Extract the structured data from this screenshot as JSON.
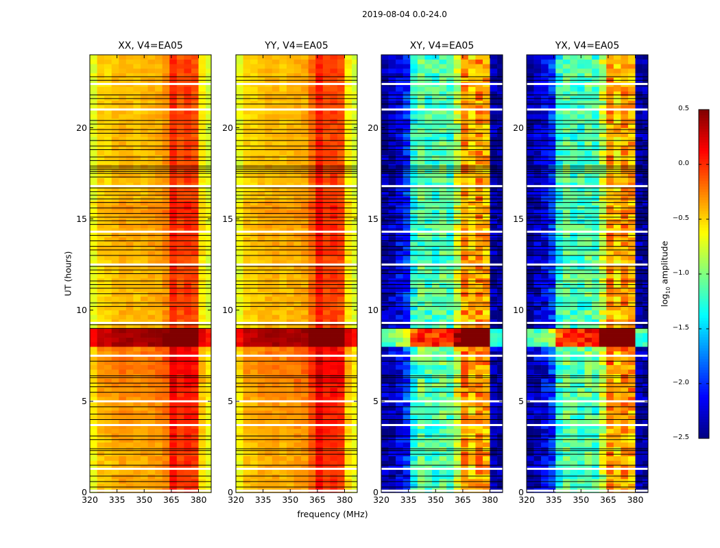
{
  "suptitle": "2019-08-04 0.0-24.0",
  "ylabel": "UT (hours)",
  "xlabel": "frequency (MHz)",
  "chart_data": {
    "type": "heatmap",
    "xlim": [
      320,
      387
    ],
    "ylim": [
      0,
      24
    ],
    "xticks": [
      "320",
      "335",
      "350",
      "365",
      "380"
    ],
    "yticks": [
      "0",
      "5",
      "10",
      "15",
      "20"
    ],
    "freq_bin_centers_mhz": [
      322,
      326,
      330,
      334,
      338,
      342,
      346,
      350,
      354,
      358,
      362,
      366,
      370,
      374,
      378,
      382,
      386
    ],
    "panels": [
      {
        "title": "XX, V4=EA05",
        "freq_profile": [
          -0.7,
          -0.5,
          -0.5,
          -0.45,
          -0.4,
          -0.42,
          -0.45,
          -0.42,
          -0.4,
          -0.38,
          -0.3,
          0.0,
          -0.12,
          -0.05,
          -0.1,
          -0.6,
          -0.75
        ],
        "hour_offsets": [
          0.05,
          0.05,
          0.05,
          0.1,
          0.1,
          0.15,
          0.2,
          0.2,
          0.8,
          0,
          0,
          0,
          0,
          0.05,
          0.05,
          0.1,
          0,
          0,
          0,
          0,
          0,
          0,
          0,
          0
        ]
      },
      {
        "title": "YY, V4=EA05",
        "freq_profile": [
          -0.7,
          -0.5,
          -0.5,
          -0.45,
          -0.42,
          -0.42,
          -0.45,
          -0.42,
          -0.4,
          -0.38,
          -0.2,
          0.05,
          -0.1,
          -0.05,
          -0.1,
          -0.6,
          -0.75
        ],
        "hour_offsets": [
          0.05,
          0.05,
          0.05,
          0.1,
          0.1,
          0.15,
          0.2,
          0.2,
          0.8,
          0,
          0,
          0,
          0,
          0.05,
          0.05,
          0.1,
          0,
          0,
          0,
          0,
          0,
          0,
          0,
          0
        ]
      },
      {
        "title": "XY, V4=EA05",
        "freq_profile": [
          -2.4,
          -2.3,
          -2.2,
          -2.0,
          -1.3,
          -1.1,
          -1.2,
          -1.2,
          -1.1,
          -1.2,
          -0.8,
          -0.3,
          -0.5,
          -0.3,
          -0.4,
          -2.4,
          -2.45
        ],
        "hour_offsets": [
          0,
          0,
          0,
          0,
          0,
          0.1,
          0,
          0.1,
          1.2,
          0,
          0,
          0,
          0,
          0,
          0,
          0,
          0,
          0,
          0,
          0,
          0,
          0,
          0,
          0
        ]
      },
      {
        "title": "YX, V4=EA05",
        "freq_profile": [
          -2.4,
          -2.3,
          -2.2,
          -2.0,
          -1.3,
          -1.1,
          -1.2,
          -1.2,
          -1.1,
          -1.2,
          -0.8,
          -0.3,
          -0.5,
          -0.3,
          -0.4,
          -2.4,
          -2.45
        ],
        "hour_offsets": [
          0,
          0,
          0,
          0,
          0,
          0.1,
          0,
          0.1,
          1.2,
          0,
          0,
          0,
          0,
          0,
          0,
          0,
          0,
          0,
          0,
          0,
          0,
          0,
          0,
          0
        ]
      }
    ],
    "flagged_hours_black": [
      22.8,
      22.6,
      21.8,
      21.6,
      21.3,
      20.4,
      20.2,
      19.9,
      19.7,
      19.3,
      19.0,
      18.8,
      18.4,
      18.2,
      17.9,
      17.8,
      17.7,
      17.6,
      17.5,
      17.3,
      16.7,
      16.5,
      16.3,
      16.1,
      15.9,
      15.6,
      15.3,
      15.1,
      14.9,
      14.7,
      14.1,
      13.8,
      13.5,
      13.3,
      13.0,
      12.4,
      12.2,
      12.0,
      11.6,
      11.4,
      11.2,
      10.9,
      10.4,
      10.2,
      9.2,
      9.0,
      7.2,
      6.4,
      6.3,
      6.0,
      5.8,
      5.5,
      4.7,
      4.3,
      4.0,
      3.1,
      2.9,
      2.4,
      2.3,
      2.1,
      1.5,
      0.9,
      0.6,
      0.3
    ],
    "flagged_hours_white": [
      22.4,
      21.0,
      16.8,
      14.3,
      12.5,
      9.3,
      7.5,
      5.0,
      3.7,
      1.3,
      0.1
    ],
    "colorbar": {
      "label": "log10 amplitude",
      "range": [
        -2.5,
        0.5
      ],
      "ticks": [
        "0.5",
        "0.0",
        "−0.5",
        "−1.0",
        "−1.5",
        "−2.0",
        "−2.5"
      ],
      "colormap": "jet"
    }
  }
}
